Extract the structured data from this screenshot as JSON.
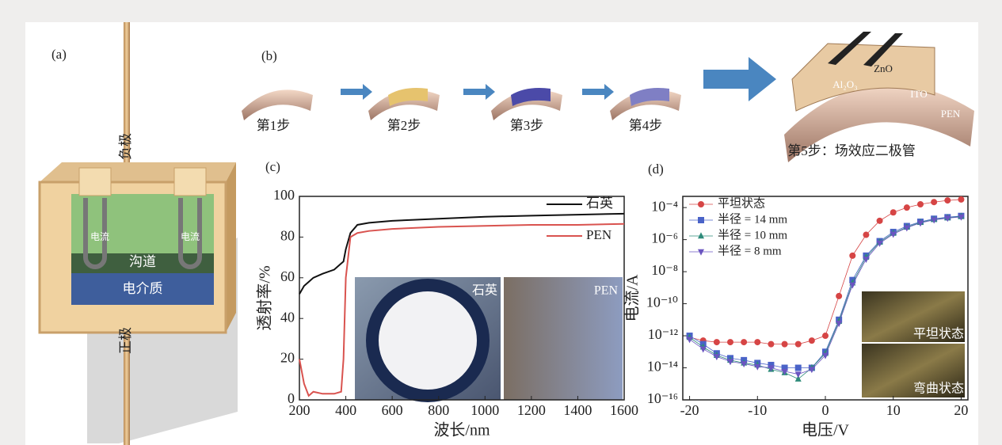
{
  "panel_a": {
    "label": "(a)",
    "negative": "负极",
    "positive": "正极",
    "current_left": "电流",
    "current_right": "电流",
    "channel": "沟道",
    "dielectric": "电介质"
  },
  "panel_b": {
    "label": "(b)",
    "steps": [
      "第1步",
      "第2步",
      "第3步",
      "第4步"
    ],
    "step5": "第5步：场效应二极管",
    "layers": {
      "zno": "ZnO",
      "al2o3": "Al₂O₃",
      "ito": "ITO",
      "pen": "PEN"
    }
  },
  "chart_data": [
    {
      "type": "line",
      "panel_label": "(c)",
      "x_label": "波长/nm",
      "y_label": "透射率/%",
      "x": [
        200,
        220,
        240,
        260,
        300,
        350,
        380,
        390,
        400,
        420,
        450,
        500,
        600,
        800,
        1000,
        1200,
        1400,
        1600
      ],
      "series": [
        {
          "name": "石英",
          "color": "#111111",
          "values": [
            52,
            56,
            58,
            60,
            62,
            64,
            67,
            68,
            74,
            82,
            86,
            87,
            88,
            89,
            90,
            90.5,
            91,
            91.5
          ]
        },
        {
          "name": "PEN",
          "color": "#d9534f",
          "values": [
            20,
            8,
            2,
            4,
            3,
            3,
            4,
            20,
            60,
            80,
            82,
            83,
            84,
            85,
            85.5,
            86,
            86,
            86.5
          ]
        }
      ],
      "xlim": [
        200,
        1600
      ],
      "ylim": [
        0,
        100
      ],
      "xticks": [
        200,
        400,
        600,
        800,
        1000,
        1200,
        1400,
        1600
      ],
      "yticks": [
        0,
        20,
        40,
        60,
        80,
        100
      ],
      "inset_labels": [
        "石英",
        "PEN"
      ]
    },
    {
      "type": "scatter",
      "panel_label": "(d)",
      "x_label": "电压/V",
      "y_label": "电流/A",
      "log_y": true,
      "x": [
        -20,
        -18,
        -16,
        -14,
        -12,
        -10,
        -8,
        -6,
        -4,
        -2,
        0,
        2,
        4,
        6,
        8,
        10,
        12,
        14,
        16,
        18,
        20
      ],
      "series": [
        {
          "name": "平坦状态",
          "color": "#d64545",
          "marker": "circle",
          "values": [
            8e-13,
            5e-13,
            4e-13,
            4e-13,
            4e-13,
            4e-13,
            3e-13,
            3e-13,
            3e-13,
            5e-13,
            1e-12,
            3e-10,
            1e-07,
            2e-06,
            1.5e-05,
            5e-05,
            0.0001,
            0.00016,
            0.00022,
            0.00028,
            0.00032
          ]
        },
        {
          "name": "半径 = 14 mm",
          "color": "#4a63c8",
          "marker": "square",
          "values": [
            1e-12,
            3e-13,
            8e-14,
            4e-14,
            3e-14,
            2e-14,
            1.5e-14,
            1e-14,
            1e-14,
            1e-14,
            1e-13,
            1e-11,
            3e-09,
            1e-07,
            8e-07,
            3e-06,
            7e-06,
            1.3e-05,
            2e-05,
            2.5e-05,
            3e-05
          ]
        },
        {
          "name": "半径 = 10 mm",
          "color": "#2e8b7a",
          "marker": "triangle",
          "values": [
            8e-13,
            2e-13,
            6e-14,
            3e-14,
            2e-14,
            1.5e-14,
            8e-15,
            5e-15,
            2e-15,
            1e-14,
            8e-14,
            8e-12,
            2e-09,
            8e-08,
            7e-07,
            2.5e-06,
            6e-06,
            1.2e-05,
            1.8e-05,
            2.3e-05,
            2.8e-05
          ]
        },
        {
          "name": "半径 = 8 mm",
          "color": "#6a55c0",
          "marker": "triangle-down",
          "values": [
            6e-13,
            1.5e-13,
            5e-14,
            2.5e-14,
            1.8e-14,
            1.2e-14,
            1e-14,
            6e-15,
            4e-15,
            8e-15,
            6e-14,
            6e-12,
            1.5e-09,
            6e-08,
            6e-07,
            2.2e-06,
            5.5e-06,
            1.1e-05,
            1.7e-05,
            2.2e-05,
            2.6e-05
          ]
        }
      ],
      "xlim": [
        -21,
        21
      ],
      "ylim": [
        1e-16,
        0.0005
      ],
      "xticks": [
        -20,
        -10,
        0,
        10,
        20
      ],
      "yticks": [
        {
          "value": 1e-16,
          "label": "10⁻¹⁶"
        },
        {
          "value": 1e-14,
          "label": "10⁻¹⁴"
        },
        {
          "value": 1e-12,
          "label": "10⁻¹²"
        },
        {
          "value": 1e-10,
          "label": "10⁻¹⁰"
        },
        {
          "value": 1e-08,
          "label": "10⁻⁸"
        },
        {
          "value": 1e-06,
          "label": "10⁻⁶"
        },
        {
          "value": 0.0001,
          "label": "10⁻⁴"
        }
      ],
      "inset_labels": [
        "平坦状态",
        "弯曲状态"
      ]
    }
  ]
}
